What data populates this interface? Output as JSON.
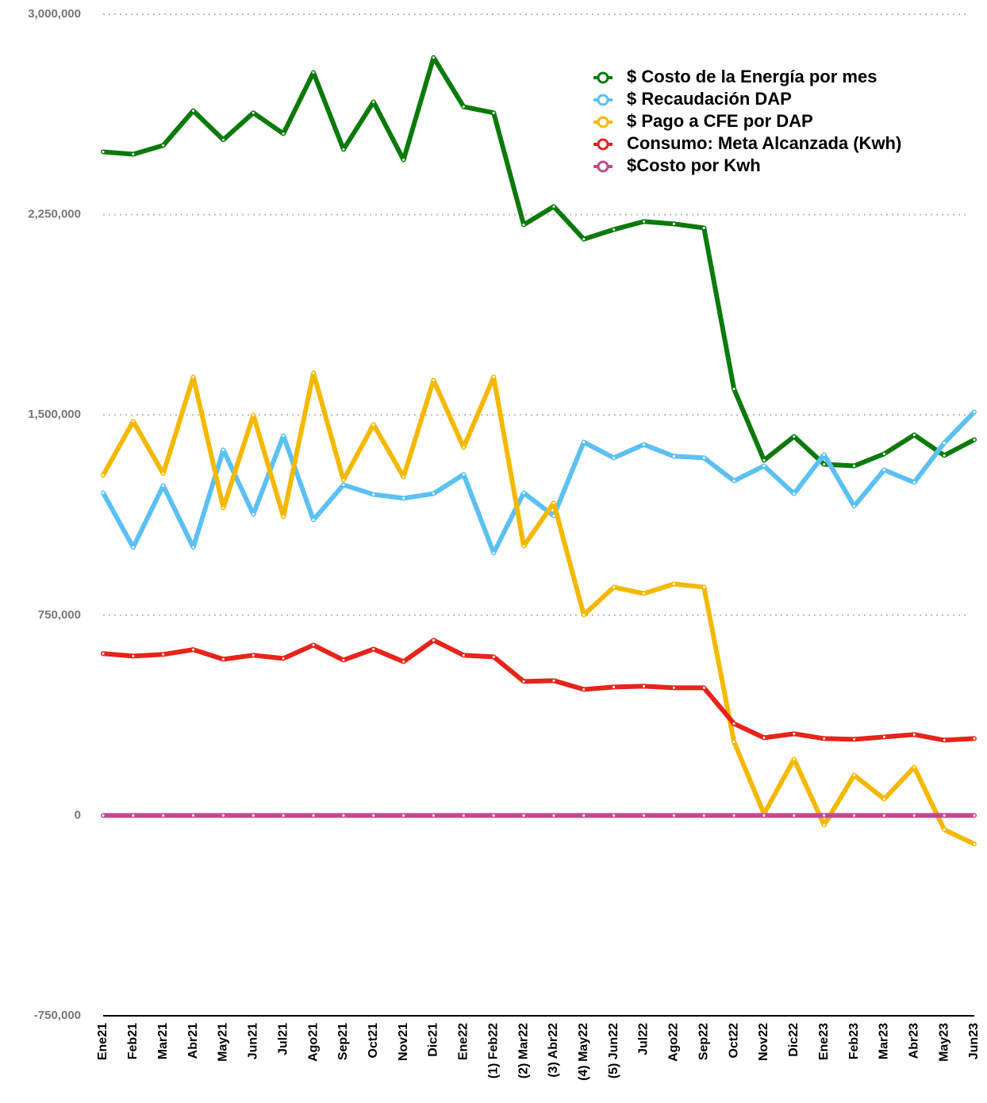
{
  "chart_data": {
    "type": "line",
    "categories": [
      "Ene21",
      "Feb21",
      "Mar21",
      "Abr21",
      "May21",
      "Jun21",
      "Jul21",
      "Ago21",
      "Sep21",
      "Oct21",
      "Nov21",
      "Dic21",
      "Ene22",
      "(1) Feb22",
      "(2) Mar22",
      "(3) Abr22",
      "(4) May22",
      "(5) Jun22",
      "Jul22",
      "Ago22",
      "Sep22",
      "Oct22",
      "Nov22",
      "Dic22",
      "Ene23",
      "Feb23",
      "Mar23",
      "Abr23",
      "May23",
      "Jun23"
    ],
    "series": [
      {
        "name": "$ Costo de la Energía por mes",
        "color": "#0b7a0b",
        "values": [
          2485000,
          2476000,
          2509000,
          2639000,
          2530000,
          2631000,
          2553000,
          2782000,
          2494000,
          2672000,
          2455000,
          2838000,
          2654000,
          2631000,
          2212000,
          2280000,
          2158000,
          2194000,
          2224000,
          2215000,
          2200000,
          1597000,
          1330000,
          1419000,
          1315000,
          1309000,
          1354000,
          1425000,
          1348000,
          1407000
        ]
      },
      {
        "name": "$ Recaudación DAP",
        "color": "#5bc0f5",
        "values": [
          1208000,
          1004000,
          1235000,
          1004000,
          1369000,
          1128000,
          1422000,
          1107000,
          1238000,
          1202000,
          1188000,
          1205000,
          1277000,
          983000,
          1208000,
          1122000,
          1398000,
          1339000,
          1389000,
          1345000,
          1339000,
          1253000,
          1309000,
          1205000,
          1351000,
          1158000,
          1294000,
          1247000,
          1395000,
          1511000
        ]
      },
      {
        "name": "$ Pago a CFE por DAP",
        "color": "#f5b800",
        "values": [
          1274000,
          1476000,
          1280000,
          1642000,
          1152000,
          1499000,
          1119000,
          1657000,
          1256000,
          1464000,
          1268000,
          1630000,
          1378000,
          1642000,
          1009000,
          1170000,
          751000,
          855000,
          831000,
          867000,
          855000,
          276000,
          6000,
          211000,
          -36000,
          151000,
          62000,
          181000,
          -53000,
          -107000
        ]
      },
      {
        "name": "Consumo: Meta Alcanzada (Kwh)",
        "color": "#e8231a",
        "values": [
          606000,
          597000,
          603000,
          621000,
          585000,
          600000,
          588000,
          638000,
          582000,
          623000,
          576000,
          656000,
          600000,
          594000,
          502000,
          505000,
          472000,
          481000,
          484000,
          478000,
          478000,
          344000,
          291000,
          306000,
          288000,
          285000,
          294000,
          303000,
          282000,
          288000
        ]
      },
      {
        "name": "$Costo por Kwh",
        "color": "#c04a90",
        "values": [
          0,
          0,
          0,
          0,
          0,
          0,
          0,
          0,
          0,
          0,
          0,
          0,
          0,
          0,
          0,
          0,
          0,
          0,
          0,
          0,
          0,
          0,
          0,
          0,
          0,
          0,
          0,
          0,
          0,
          0
        ]
      }
    ],
    "ylim": [
      -750000,
      3000000
    ],
    "yticks": [
      {
        "value": -750000,
        "label": "-750,000"
      },
      0,
      {
        "value": 750000,
        "label": "750,000"
      },
      {
        "value": 1500000,
        "label": "1,500,000"
      },
      {
        "value": 2250000,
        "label": "2,250,000"
      },
      {
        "value": 3000000,
        "label": "3,000,000"
      }
    ],
    "grid": true,
    "legend": "top-right"
  }
}
